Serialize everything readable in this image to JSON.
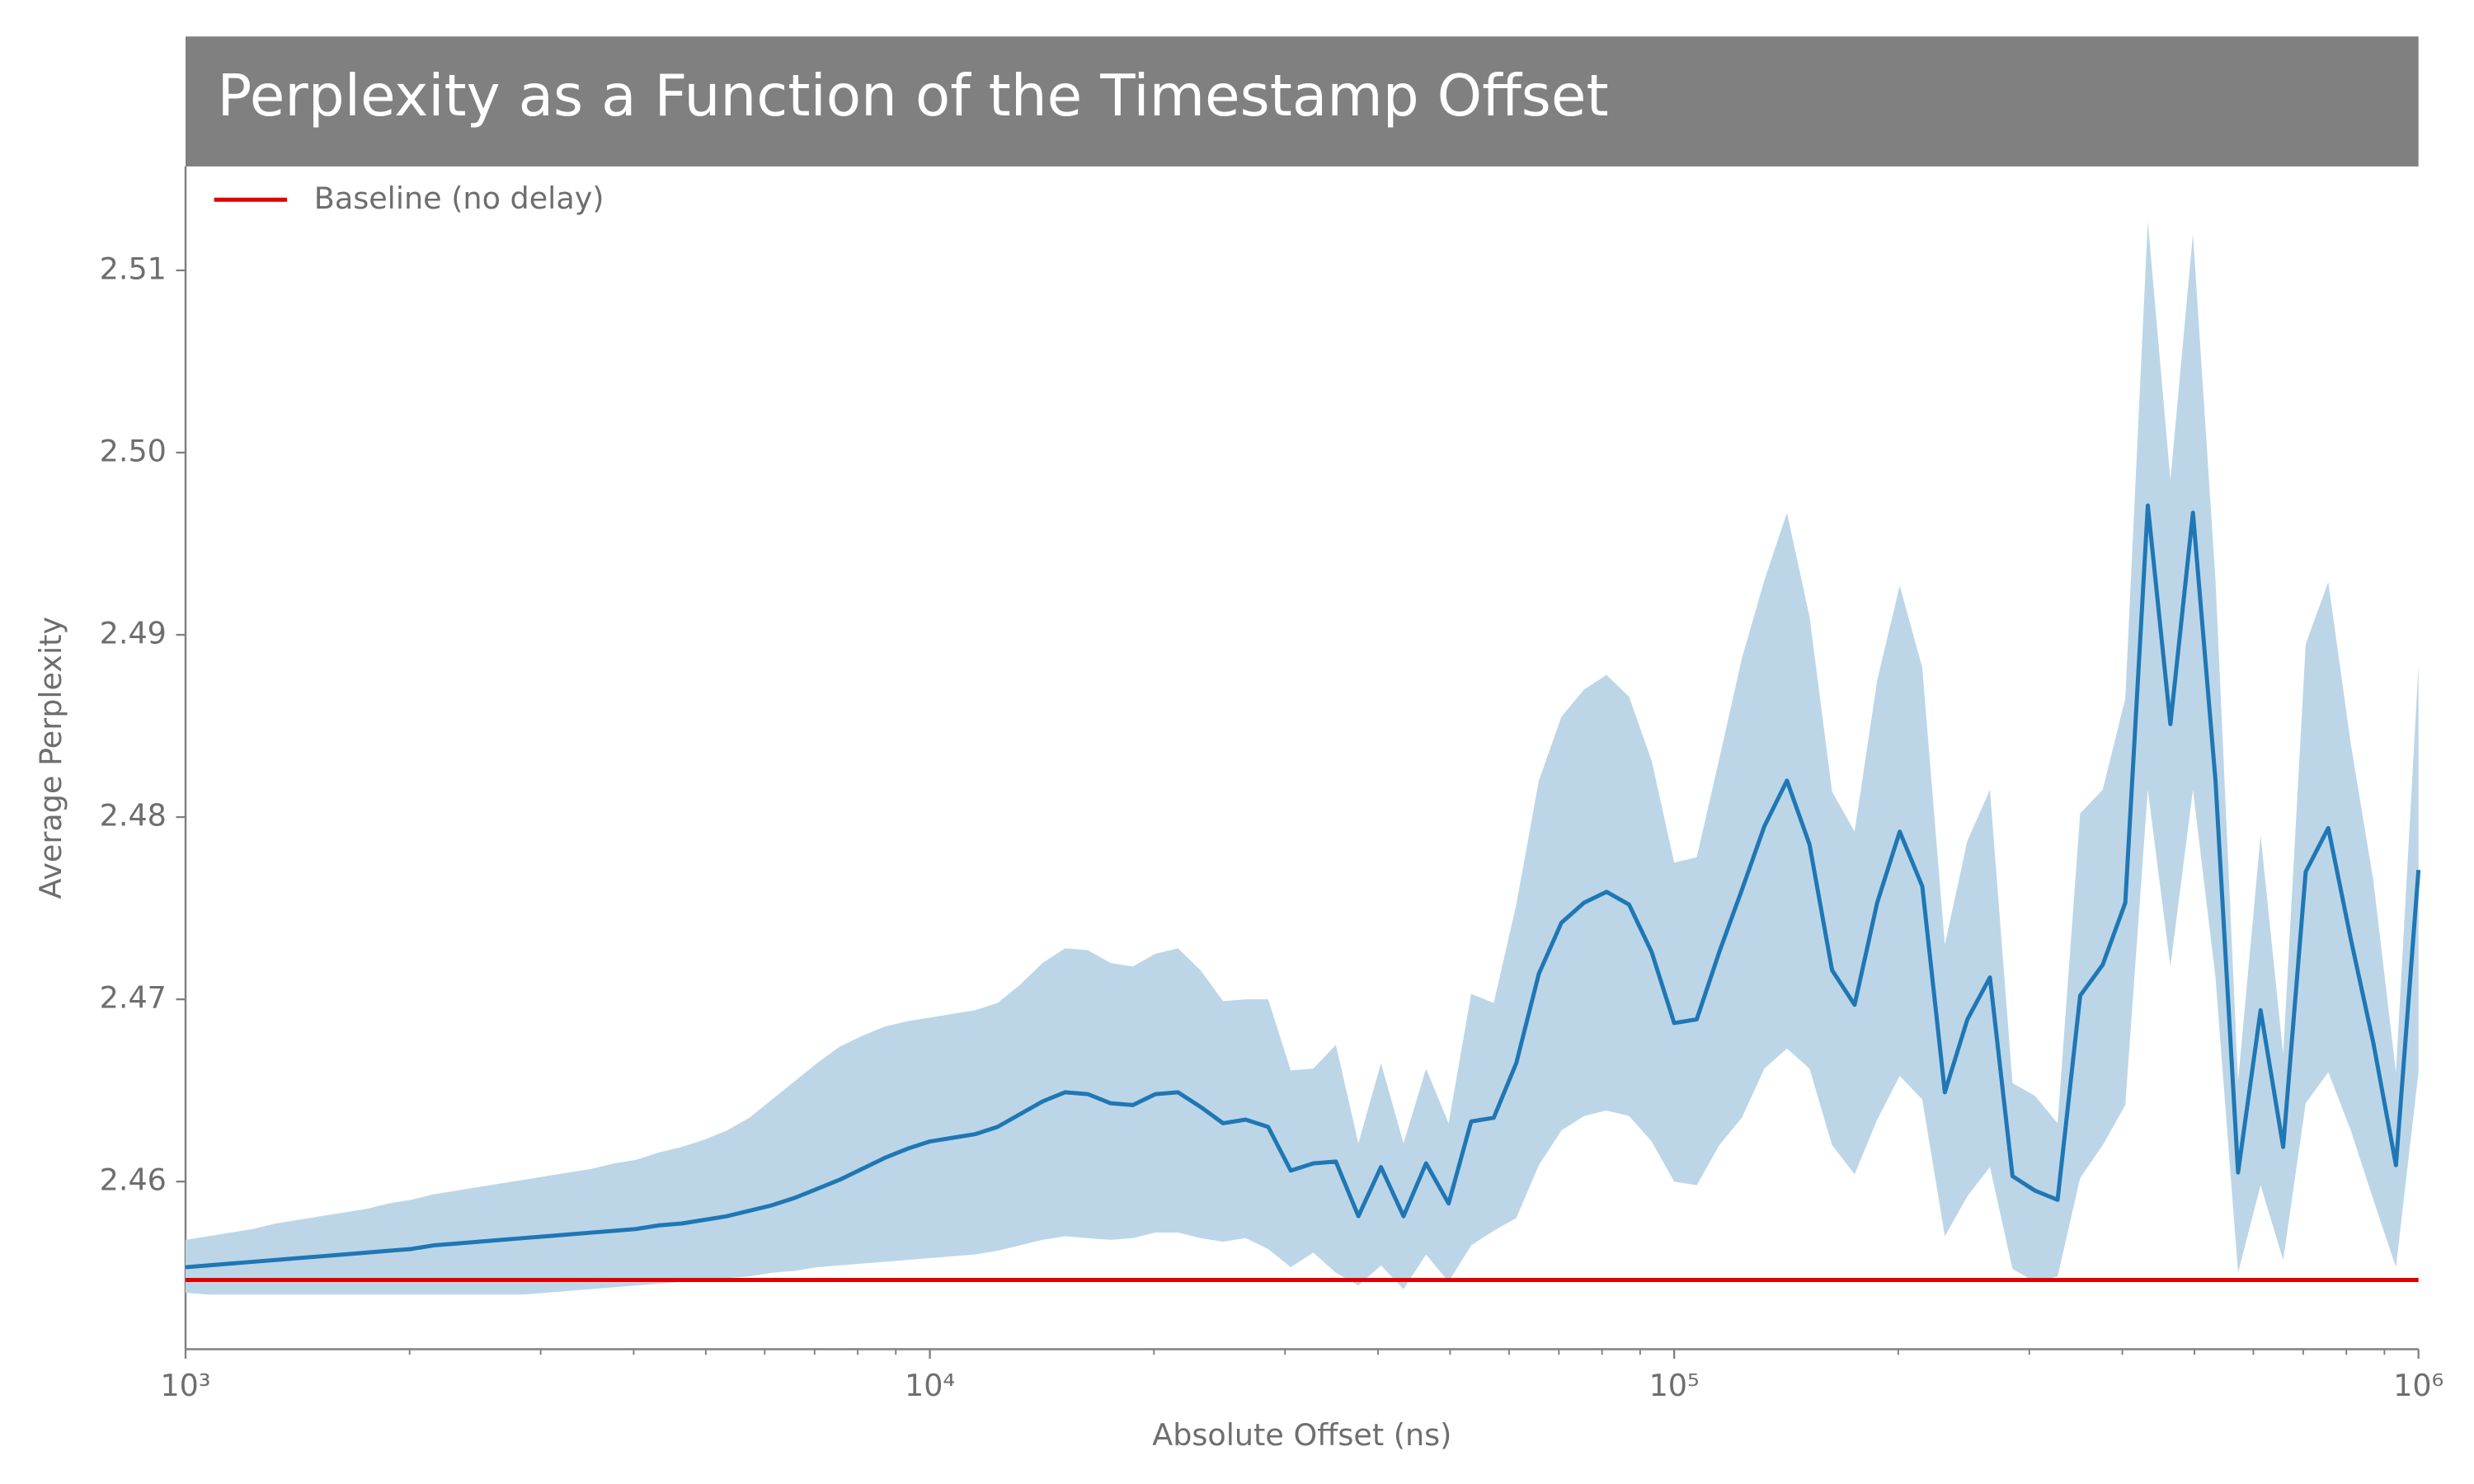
{
  "chart_data": {
    "type": "line",
    "title": "Perplexity as a Function of the Timestamp Offset",
    "x_label": "Absolute Offset (ns)",
    "y_label": "Average Perplexity",
    "xscale": "log",
    "xlim": [
      1000,
      1000000
    ],
    "xticks": [
      {
        "value": 1000,
        "label": "10³"
      },
      {
        "value": 10000,
        "label": "10⁴"
      },
      {
        "value": 100000,
        "label": "10⁵"
      },
      {
        "value": 1000000,
        "label": "10⁶"
      }
    ],
    "xminorticks": [
      2000,
      3000,
      4000,
      5000,
      6000,
      7000,
      8000,
      9000,
      20000,
      30000,
      40000,
      50000,
      60000,
      70000,
      80000,
      90000,
      200000,
      300000,
      400000,
      500000,
      600000,
      700000,
      800000,
      900000
    ],
    "ylim": [
      2.4508,
      2.5157
    ],
    "yticks": [
      2.46,
      2.47,
      2.48,
      2.49,
      2.5,
      2.51
    ],
    "yticklabels": [
      "2.46",
      "2.47",
      "2.48",
      "2.49",
      "2.50",
      "2.51"
    ],
    "grid": false,
    "legend": "upper left",
    "x": [
      1000,
      1072,
      1150,
      1233,
      1322,
      1417,
      1520,
      1630,
      1748,
      1874,
      2009,
      2154,
      2310,
      2477,
      2656,
      2848,
      3054,
      3275,
      3511,
      3765,
      4037,
      4329,
      4642,
      4977,
      5337,
      5722,
      6136,
      6579,
      7055,
      7565,
      8111,
      8697,
      9326,
      10000,
      10723,
      11498,
      12328,
      13219,
      14175,
      15199,
      16298,
      17475,
      18738,
      20092,
      21544,
      23101,
      24771,
      26561,
      28480,
      30539,
      32745,
      35112,
      37649,
      40370,
      43288,
      46416,
      49770,
      53367,
      57224,
      61359,
      65793,
      70548,
      75646,
      81113,
      86975,
      93260,
      100000,
      107227,
      114976,
      123285,
      132194,
      141747,
      151991,
      162975,
      174753,
      187382,
      200923,
      215443,
      231013,
      247708,
      265609,
      284804,
      305386,
      327455,
      351119,
      376494,
      403702,
      432876,
      464159,
      497702,
      533670,
      572237,
      613591,
      657933,
      705480,
      756463,
      811131,
      869749,
      932603,
      1000000
    ],
    "series": [
      {
        "color": "#1f77b4",
        "band_color": "#bcd6e8",
        "values": [
          2.4553,
          2.4554,
          2.4555,
          2.4556,
          2.4557,
          2.4558,
          2.4559,
          2.456,
          2.4561,
          2.4562,
          2.4563,
          2.4565,
          2.4566,
          2.4567,
          2.4568,
          2.4569,
          2.457,
          2.4571,
          2.4572,
          2.4573,
          2.4574,
          2.4576,
          2.4577,
          2.4579,
          2.4581,
          2.4584,
          2.4587,
          2.4591,
          2.4596,
          2.4601,
          2.4607,
          2.4613,
          2.4618,
          2.4622,
          2.4624,
          2.4626,
          2.463,
          2.4637,
          2.4644,
          2.4649,
          2.4648,
          2.4643,
          2.4642,
          2.4648,
          2.4649,
          2.4641,
          2.4632,
          2.4634,
          2.463,
          2.4606,
          2.461,
          2.4611,
          2.4581,
          2.4608,
          2.4581,
          2.461,
          2.4588,
          2.4633,
          2.4635,
          2.4665,
          2.4714,
          2.4742,
          2.4753,
          2.4759,
          2.4752,
          2.4726,
          2.4687,
          2.4689,
          2.4726,
          2.476,
          2.4795,
          2.482,
          2.4785,
          2.4716,
          2.4697,
          2.4753,
          2.4792,
          2.4762,
          2.4649,
          2.4689,
          2.4712,
          2.4603,
          2.4595,
          2.459,
          2.4702,
          2.4719,
          2.4753,
          2.4971,
          2.4851,
          2.4967,
          2.482,
          2.4605,
          2.4694,
          2.4619,
          2.477,
          2.4794,
          2.4733,
          2.4676,
          2.4609,
          2.4771
        ],
        "upper": [
          2.4568,
          2.457,
          2.4572,
          2.4574,
          2.4577,
          2.4579,
          2.4581,
          2.4583,
          2.4585,
          2.4588,
          2.459,
          2.4593,
          2.4595,
          2.4597,
          2.4599,
          2.4601,
          2.4603,
          2.4605,
          2.4607,
          2.461,
          2.4612,
          2.4616,
          2.4619,
          2.4623,
          2.4628,
          2.4635,
          2.4645,
          2.4655,
          2.4665,
          2.4674,
          2.468,
          2.4685,
          2.4688,
          2.469,
          2.4692,
          2.4694,
          2.4698,
          2.4708,
          2.472,
          2.4728,
          2.4727,
          2.472,
          2.4718,
          2.4725,
          2.4728,
          2.4716,
          2.4699,
          2.47,
          2.47,
          2.4661,
          2.4662,
          2.4675,
          2.4621,
          2.4665,
          2.4621,
          2.4662,
          2.4632,
          2.4703,
          2.4698,
          2.4752,
          2.482,
          2.4855,
          2.487,
          2.4878,
          2.4866,
          2.4831,
          2.4775,
          2.4778,
          2.4832,
          2.4887,
          2.493,
          2.4967,
          2.491,
          2.4814,
          2.4792,
          2.4875,
          2.4927,
          2.4882,
          2.473,
          2.4787,
          2.4815,
          2.4654,
          2.4647,
          2.4632,
          2.4802,
          2.4815,
          2.4865,
          2.5127,
          2.4985,
          2.512,
          2.493,
          2.4655,
          2.479,
          2.467,
          2.4895,
          2.4929,
          2.484,
          2.4765,
          2.466,
          2.4883
        ],
        "lower": [
          2.4539,
          2.4538,
          2.4538,
          2.4538,
          2.4538,
          2.4538,
          2.4538,
          2.4538,
          2.4538,
          2.4538,
          2.4538,
          2.4538,
          2.4538,
          2.4538,
          2.4538,
          2.4538,
          2.4539,
          2.454,
          2.4541,
          2.4542,
          2.4543,
          2.4544,
          2.4545,
          2.4546,
          2.4547,
          2.4548,
          2.455,
          2.4551,
          2.4553,
          2.4554,
          2.4555,
          2.4556,
          2.4557,
          2.4558,
          2.4559,
          2.456,
          2.4562,
          2.4565,
          2.4568,
          2.457,
          2.4569,
          2.4568,
          2.4569,
          2.4572,
          2.4572,
          2.4569,
          2.4567,
          2.4569,
          2.4563,
          2.4553,
          2.4561,
          2.455,
          2.4543,
          2.4554,
          2.4541,
          2.456,
          2.4545,
          2.4565,
          2.4573,
          2.458,
          2.4609,
          2.4628,
          2.4636,
          2.4639,
          2.4636,
          2.4622,
          2.46,
          2.4598,
          2.462,
          2.4635,
          2.4662,
          2.4673,
          2.4662,
          2.462,
          2.4604,
          2.4634,
          2.4658,
          2.4645,
          2.457,
          2.4592,
          2.4608,
          2.4552,
          2.4545,
          2.4548,
          2.4602,
          2.462,
          2.4642,
          2.4815,
          2.4718,
          2.4815,
          2.4712,
          2.455,
          2.4598,
          2.4557,
          2.4643,
          2.466,
          2.4628,
          2.459,
          2.4553,
          2.466
        ]
      }
    ],
    "baseline": {
      "name": "Baseline (no delay)",
      "color": "#e00000",
      "value": 2.4546
    }
  }
}
